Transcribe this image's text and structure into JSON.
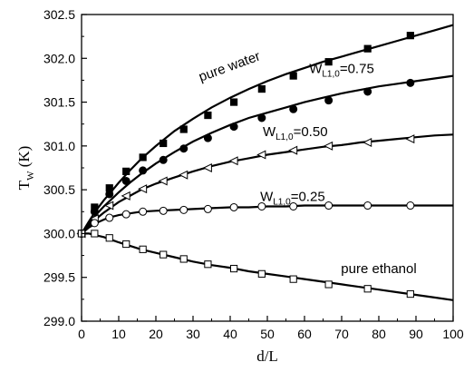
{
  "chart_data": {
    "type": "line",
    "xlabel": "d/L",
    "ylabel_main": "T",
    "ylabel_sub": "W",
    "ylabel_unit": " (K)",
    "xlim": [
      0,
      100
    ],
    "ylim": [
      299.0,
      302.5
    ],
    "x_ticks": [
      0,
      10,
      20,
      30,
      40,
      50,
      60,
      70,
      80,
      90,
      100
    ],
    "y_ticks": [
      299.0,
      299.5,
      300.0,
      300.5,
      301.0,
      301.5,
      302.0,
      302.5
    ],
    "y_tick_decimals": 1,
    "grid": false,
    "series": [
      {
        "name": "pure water",
        "label_main": "pure water",
        "label_sub": "",
        "label_tail": "",
        "marker": "square-filled",
        "curve": [
          [
            0,
            300.0
          ],
          [
            2,
            300.14
          ],
          [
            4,
            300.27
          ],
          [
            6,
            300.38
          ],
          [
            8,
            300.48
          ],
          [
            10,
            300.58
          ],
          [
            13,
            300.72
          ],
          [
            16,
            300.85
          ],
          [
            20,
            301.0
          ],
          [
            25,
            301.17
          ],
          [
            30,
            301.31
          ],
          [
            35,
            301.44
          ],
          [
            40,
            301.55
          ],
          [
            45,
            301.65
          ],
          [
            50,
            301.74
          ],
          [
            55,
            301.82
          ],
          [
            60,
            301.89
          ],
          [
            65,
            301.96
          ],
          [
            70,
            302.02
          ],
          [
            75,
            302.08
          ],
          [
            80,
            302.14
          ],
          [
            85,
            302.2
          ],
          [
            90,
            302.26
          ],
          [
            95,
            302.32
          ],
          [
            100,
            302.38
          ]
        ],
        "points": [
          [
            0,
            300.0
          ],
          [
            3.5,
            300.3
          ],
          [
            7.5,
            300.52
          ],
          [
            12,
            300.71
          ],
          [
            16.5,
            300.87
          ],
          [
            22,
            301.03
          ],
          [
            27.5,
            301.19
          ],
          [
            34,
            301.35
          ],
          [
            41,
            301.5
          ],
          [
            48.5,
            301.65
          ],
          [
            57,
            301.8
          ],
          [
            66.5,
            301.96
          ],
          [
            77,
            302.11
          ],
          [
            88.5,
            302.26
          ]
        ]
      },
      {
        "name": "W_L1,0=0.75",
        "label_main": "W",
        "label_sub": "L1,0",
        "label_tail": "=0.75",
        "marker": "circle-filled",
        "curve": [
          [
            0,
            300.0
          ],
          [
            2,
            300.11
          ],
          [
            4,
            300.22
          ],
          [
            6,
            300.31
          ],
          [
            8,
            300.39
          ],
          [
            10,
            300.47
          ],
          [
            13,
            300.58
          ],
          [
            16,
            300.68
          ],
          [
            20,
            300.8
          ],
          [
            25,
            300.93
          ],
          [
            30,
            301.05
          ],
          [
            35,
            301.15
          ],
          [
            40,
            301.24
          ],
          [
            45,
            301.32
          ],
          [
            50,
            301.38
          ],
          [
            55,
            301.44
          ],
          [
            60,
            301.5
          ],
          [
            65,
            301.55
          ],
          [
            70,
            301.6
          ],
          [
            75,
            301.64
          ],
          [
            80,
            301.68
          ],
          [
            85,
            301.71
          ],
          [
            90,
            301.74
          ],
          [
            95,
            301.77
          ],
          [
            100,
            301.8
          ]
        ],
        "points": [
          [
            0,
            300.0
          ],
          [
            3.5,
            300.25
          ],
          [
            7.5,
            300.45
          ],
          [
            12,
            300.6
          ],
          [
            16.5,
            300.72
          ],
          [
            22,
            300.84
          ],
          [
            27.5,
            300.97
          ],
          [
            34,
            301.09
          ],
          [
            41,
            301.22
          ],
          [
            48.5,
            301.32
          ],
          [
            57,
            301.42
          ],
          [
            66.5,
            301.52
          ],
          [
            77,
            301.62
          ],
          [
            88.5,
            301.72
          ]
        ]
      },
      {
        "name": "W_L1,0=0.50",
        "label_main": "W",
        "label_sub": "L1,0",
        "label_tail": "=0.50",
        "marker": "triangle-left-open",
        "curve": [
          [
            0,
            300.0
          ],
          [
            2,
            300.09
          ],
          [
            4,
            300.17
          ],
          [
            6,
            300.24
          ],
          [
            8,
            300.3
          ],
          [
            10,
            300.36
          ],
          [
            13,
            300.43
          ],
          [
            16,
            300.5
          ],
          [
            20,
            300.57
          ],
          [
            25,
            300.64
          ],
          [
            30,
            300.71
          ],
          [
            35,
            300.77
          ],
          [
            40,
            300.82
          ],
          [
            45,
            300.86
          ],
          [
            50,
            300.9
          ],
          [
            55,
            300.93
          ],
          [
            60,
            300.96
          ],
          [
            65,
            300.99
          ],
          [
            70,
            301.01
          ],
          [
            75,
            301.04
          ],
          [
            80,
            301.06
          ],
          [
            85,
            301.08
          ],
          [
            90,
            301.1
          ],
          [
            95,
            301.12
          ],
          [
            100,
            301.13
          ]
        ],
        "points": [
          [
            0,
            300.0
          ],
          [
            3.5,
            300.17
          ],
          [
            7.5,
            300.32
          ],
          [
            12,
            300.43
          ],
          [
            16.5,
            300.51
          ],
          [
            22,
            300.6
          ],
          [
            27.5,
            300.67
          ],
          [
            34,
            300.75
          ],
          [
            41,
            300.83
          ],
          [
            48.5,
            300.9
          ],
          [
            57,
            300.95
          ],
          [
            66.5,
            301.0
          ],
          [
            77,
            301.04
          ],
          [
            88.5,
            301.08
          ]
        ]
      },
      {
        "name": "W_L1,0=0.25",
        "label_main": "W",
        "label_sub": "L1,0",
        "label_tail": "=0.25",
        "marker": "circle-open",
        "curve": [
          [
            0,
            300.0
          ],
          [
            2,
            300.07
          ],
          [
            4,
            300.12
          ],
          [
            6,
            300.16
          ],
          [
            8,
            300.19
          ],
          [
            10,
            300.21
          ],
          [
            13,
            300.23
          ],
          [
            16,
            300.25
          ],
          [
            20,
            300.26
          ],
          [
            25,
            300.27
          ],
          [
            30,
            300.28
          ],
          [
            35,
            300.29
          ],
          [
            40,
            300.3
          ],
          [
            45,
            300.3
          ],
          [
            50,
            300.31
          ],
          [
            55,
            300.31
          ],
          [
            60,
            300.32
          ],
          [
            65,
            300.32
          ],
          [
            70,
            300.32
          ],
          [
            75,
            300.32
          ],
          [
            80,
            300.32
          ],
          [
            85,
            300.32
          ],
          [
            90,
            300.32
          ],
          [
            95,
            300.32
          ],
          [
            100,
            300.32
          ]
        ],
        "points": [
          [
            0,
            300.0
          ],
          [
            3.5,
            300.12
          ],
          [
            7.5,
            300.18
          ],
          [
            12,
            300.22
          ],
          [
            16.5,
            300.25
          ],
          [
            22,
            300.26
          ],
          [
            27.5,
            300.27
          ],
          [
            34,
            300.28
          ],
          [
            41,
            300.3
          ],
          [
            48.5,
            300.31
          ],
          [
            57,
            300.31
          ],
          [
            66.5,
            300.32
          ],
          [
            77,
            300.32
          ],
          [
            88.5,
            300.32
          ]
        ]
      },
      {
        "name": "pure ethanol",
        "label_main": "pure ethanol",
        "label_sub": "",
        "label_tail": "",
        "marker": "square-open",
        "curve": [
          [
            0,
            300.0
          ],
          [
            2,
            300.0
          ],
          [
            4,
            299.98
          ],
          [
            6,
            299.96
          ],
          [
            8,
            299.93
          ],
          [
            10,
            299.9
          ],
          [
            13,
            299.86
          ],
          [
            16,
            299.82
          ],
          [
            20,
            299.78
          ],
          [
            25,
            299.73
          ],
          [
            30,
            299.68
          ],
          [
            35,
            299.64
          ],
          [
            40,
            299.61
          ],
          [
            45,
            299.57
          ],
          [
            50,
            299.54
          ],
          [
            55,
            299.51
          ],
          [
            60,
            299.48
          ],
          [
            65,
            299.45
          ],
          [
            70,
            299.42
          ],
          [
            75,
            299.39
          ],
          [
            80,
            299.36
          ],
          [
            85,
            299.33
          ],
          [
            90,
            299.3
          ],
          [
            95,
            299.27
          ],
          [
            100,
            299.24
          ]
        ],
        "points": [
          [
            0,
            300.0
          ],
          [
            3.5,
            300.0
          ],
          [
            7.5,
            299.95
          ],
          [
            12,
            299.88
          ],
          [
            16.5,
            299.82
          ],
          [
            22,
            299.76
          ],
          [
            27.5,
            299.71
          ],
          [
            34,
            299.65
          ],
          [
            41,
            299.6
          ],
          [
            48.5,
            299.54
          ],
          [
            57,
            299.48
          ],
          [
            66.5,
            299.42
          ],
          [
            77,
            299.37
          ],
          [
            88.5,
            299.31
          ]
        ]
      }
    ]
  }
}
